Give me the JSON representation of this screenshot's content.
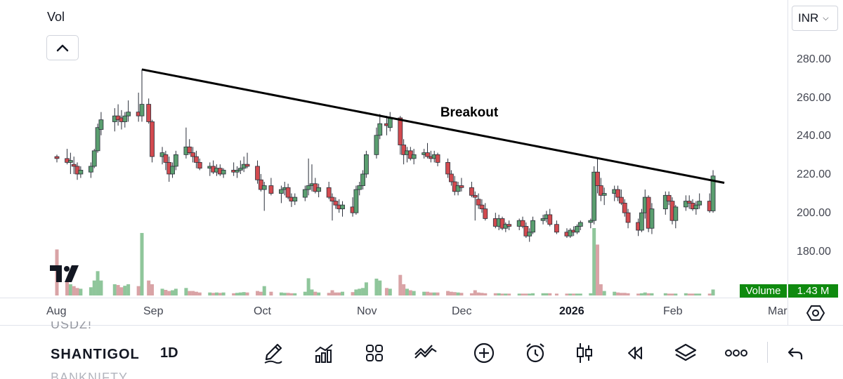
{
  "header": {
    "volume_indicator_label": "Vol"
  },
  "currency": {
    "value": "INR"
  },
  "price_axis": {
    "ticks": [
      "280.00",
      "260.00",
      "240.00",
      "220.00",
      "200.00",
      "180.00"
    ]
  },
  "time_axis": {
    "ticks": [
      "Aug",
      "Sep",
      "Oct",
      "Nov",
      "Dec",
      "2026",
      "Feb",
      "Mar"
    ]
  },
  "volume_badge": {
    "label": "Volume",
    "value": "1.43 M"
  },
  "annotation": {
    "text": "Breakout"
  },
  "symbols": {
    "previous": "USDZ!",
    "current": "SHANTIGOL",
    "next": "BANKNIFTY"
  },
  "interval": "1D",
  "toolbar": {
    "icons": [
      "drawing-pen-icon",
      "indicators-icon",
      "layouts-grid-icon",
      "compare-icon",
      "add-icon",
      "alert-clock-icon",
      "candle-type-icon",
      "replay-icon",
      "layers-icon",
      "more-icon",
      "undo-icon"
    ]
  },
  "colors": {
    "up": "#5a9e6f",
    "down": "#d24a4f",
    "up_vol": "#8fc69b",
    "down_vol": "#d9a3a6",
    "trendline": "#000000",
    "badge": "#0f8a0f"
  },
  "chart_data": {
    "type": "candlestick",
    "ylim": [
      166,
      291
    ],
    "x_range": [
      "2025-08-01",
      "2026-03-01"
    ],
    "grid": false,
    "trendline": {
      "from": [
        "2025-08-26",
        274
      ],
      "to": [
        "2026-02-10",
        216
      ]
    },
    "candles": [
      [
        "2025-08-01",
        229,
        230,
        226,
        228,
        123
      ],
      [
        "2025-08-04",
        228,
        233,
        225,
        226,
        40
      ],
      [
        "2025-08-05",
        226,
        231,
        220,
        227,
        30
      ],
      [
        "2025-08-06",
        225,
        229,
        220,
        224,
        25
      ],
      [
        "2025-08-07",
        224,
        226,
        217,
        220,
        20
      ],
      [
        "2025-08-08",
        220,
        224,
        218,
        222,
        18
      ],
      [
        "2025-08-11",
        221,
        226,
        218,
        224,
        22
      ],
      [
        "2025-08-12",
        224,
        233,
        223,
        232,
        40
      ],
      [
        "2025-08-13",
        232,
        246,
        231,
        244,
        65
      ],
      [
        "2025-08-14",
        243,
        252,
        240,
        248,
        40
      ],
      [
        "2025-08-18",
        247,
        254,
        242,
        250,
        30
      ],
      [
        "2025-08-19",
        250,
        256,
        245,
        248,
        28
      ],
      [
        "2025-08-20",
        249,
        253,
        243,
        247,
        22
      ],
      [
        "2025-08-21",
        247,
        252,
        244,
        250,
        26
      ],
      [
        "2025-08-22",
        250,
        258,
        247,
        252,
        30
      ],
      [
        "2025-08-25",
        252,
        262,
        247,
        250,
        25
      ],
      [
        "2025-08-26",
        250,
        274,
        247,
        256,
        167
      ],
      [
        "2025-08-28",
        256,
        259,
        246,
        247,
        40
      ],
      [
        "2025-08-29",
        247,
        248,
        226,
        229,
        30
      ],
      [
        "2025-09-01",
        229,
        234,
        225,
        231,
        18
      ],
      [
        "2025-09-02",
        230,
        232,
        222,
        226,
        15
      ],
      [
        "2025-09-03",
        226,
        229,
        216,
        220,
        12
      ],
      [
        "2025-09-04",
        220,
        226,
        218,
        224,
        14
      ],
      [
        "2025-09-05",
        224,
        232,
        222,
        230,
        18
      ],
      [
        "2025-09-08",
        230,
        244,
        228,
        234,
        20
      ],
      [
        "2025-09-09",
        234,
        238,
        230,
        231,
        12
      ],
      [
        "2025-09-10",
        231,
        234,
        226,
        229,
        12
      ],
      [
        "2025-09-11",
        229,
        232,
        223,
        226,
        10
      ],
      [
        "2025-09-12",
        226,
        228,
        222,
        223,
        8
      ],
      [
        "2025-09-15",
        223,
        226,
        219,
        224,
        8
      ],
      [
        "2025-09-16",
        224,
        227,
        220,
        221,
        7
      ],
      [
        "2025-09-17",
        221,
        225,
        219,
        223,
        8
      ],
      [
        "2025-09-18",
        223,
        225,
        219,
        220,
        7
      ],
      [
        "2025-09-19",
        220,
        223,
        218,
        222,
        8
      ],
      [
        "2025-09-22",
        222,
        226,
        219,
        221,
        6
      ],
      [
        "2025-09-23",
        221,
        224,
        218,
        222,
        7
      ],
      [
        "2025-09-24",
        222,
        227,
        220,
        223,
        8
      ],
      [
        "2025-09-25",
        223,
        229,
        221,
        225,
        9
      ],
      [
        "2025-09-26",
        225,
        231,
        223,
        224,
        8
      ],
      [
        "2025-09-29",
        224,
        227,
        215,
        217,
        12
      ],
      [
        "2025-09-30",
        217,
        220,
        211,
        212,
        10
      ],
      [
        "2025-10-01",
        212,
        216,
        201,
        214,
        25
      ],
      [
        "2025-10-03",
        214,
        218,
        209,
        210,
        10
      ],
      [
        "2025-10-06",
        210,
        214,
        205,
        212,
        8
      ],
      [
        "2025-10-07",
        212,
        216,
        209,
        213,
        7
      ],
      [
        "2025-10-08",
        213,
        215,
        207,
        208,
        7
      ],
      [
        "2025-10-09",
        208,
        210,
        203,
        206,
        6
      ],
      [
        "2025-10-10",
        206,
        210,
        204,
        208,
        6
      ],
      [
        "2025-10-13",
        208,
        214,
        206,
        212,
        10
      ],
      [
        "2025-10-14",
        212,
        228,
        209,
        214,
        46
      ],
      [
        "2025-10-15",
        214,
        225,
        211,
        215,
        16
      ],
      [
        "2025-10-16",
        215,
        218,
        210,
        211,
        10
      ],
      [
        "2025-10-17",
        211,
        215,
        208,
        213,
        8
      ],
      [
        "2025-10-20",
        213,
        216,
        207,
        208,
        7
      ],
      [
        "2025-10-21",
        208,
        210,
        196,
        206,
        14
      ],
      [
        "2025-10-22",
        206,
        208,
        202,
        204,
        8
      ],
      [
        "2025-10-23",
        204,
        207,
        200,
        202,
        8
      ],
      [
        "2025-10-24",
        202,
        206,
        198,
        204,
        10
      ],
      [
        "2025-10-27",
        203,
        208,
        198,
        200,
        9
      ],
      [
        "2025-10-28",
        200,
        214,
        199,
        212,
        16
      ],
      [
        "2025-10-29",
        212,
        216,
        209,
        214,
        18
      ],
      [
        "2025-10-30",
        214,
        222,
        212,
        220,
        20
      ],
      [
        "2025-10-31",
        220,
        232,
        218,
        230,
        35
      ],
      [
        "2025-11-03",
        230,
        244,
        228,
        240,
        45
      ],
      [
        "2025-11-04",
        240,
        251,
        238,
        246,
        40
      ],
      [
        "2025-11-06",
        246,
        250,
        240,
        245,
        20
      ],
      [
        "2025-11-07",
        244,
        252,
        242,
        249,
        18
      ],
      [
        "2025-11-10",
        249,
        250,
        230,
        235,
        55
      ],
      [
        "2025-11-11",
        235,
        238,
        225,
        230,
        30
      ],
      [
        "2025-11-12",
        230,
        234,
        226,
        232,
        18
      ],
      [
        "2025-11-13",
        232,
        234,
        227,
        228,
        14
      ],
      [
        "2025-11-14",
        228,
        233,
        225,
        230,
        12
      ],
      [
        "2025-11-17",
        230,
        233,
        228,
        231,
        10
      ],
      [
        "2025-11-18",
        231,
        236,
        228,
        229,
        10
      ],
      [
        "2025-11-19",
        229,
        232,
        226,
        228,
        8
      ],
      [
        "2025-11-20",
        228,
        232,
        226,
        230,
        8
      ],
      [
        "2025-11-21",
        230,
        231,
        224,
        226,
        8
      ],
      [
        "2025-11-24",
        226,
        228,
        218,
        220,
        12
      ],
      [
        "2025-11-25",
        220,
        222,
        214,
        216,
        10
      ],
      [
        "2025-11-26",
        216,
        219,
        209,
        211,
        9
      ],
      [
        "2025-11-27",
        211,
        216,
        209,
        214,
        8
      ],
      [
        "2025-11-28",
        214,
        218,
        211,
        213,
        7
      ],
      [
        "2025-12-01",
        213,
        216,
        208,
        209,
        6
      ],
      [
        "2025-12-02",
        209,
        211,
        196,
        208,
        14
      ],
      [
        "2025-12-03",
        207,
        210,
        202,
        204,
        8
      ],
      [
        "2025-12-04",
        204,
        207,
        200,
        202,
        7
      ],
      [
        "2025-12-05",
        202,
        205,
        196,
        197,
        6
      ],
      [
        "2025-12-08",
        197,
        200,
        192,
        193,
        6
      ],
      [
        "2025-12-09",
        193,
        199,
        191,
        197,
        6
      ],
      [
        "2025-12-10",
        197,
        198,
        191,
        192,
        5
      ],
      [
        "2025-12-11",
        192,
        195,
        190,
        194,
        5
      ],
      [
        "2025-12-12",
        194,
        196,
        191,
        193,
        5
      ],
      [
        "2025-12-15",
        193,
        197,
        191,
        196,
        5
      ],
      [
        "2025-12-16",
        196,
        198,
        192,
        193,
        5
      ],
      [
        "2025-12-17",
        193,
        195,
        187,
        188,
        5
      ],
      [
        "2025-12-18",
        188,
        192,
        185,
        190,
        5
      ],
      [
        "2025-12-19",
        190,
        198,
        189,
        196,
        6
      ],
      [
        "2025-12-22",
        196,
        199,
        194,
        197,
        6
      ],
      [
        "2025-12-23",
        197,
        201,
        195,
        199,
        6
      ],
      [
        "2025-12-24",
        199,
        202,
        193,
        194,
        6
      ],
      [
        "2025-12-26",
        194,
        196,
        189,
        190,
        5
      ],
      [
        "2025-12-29",
        190,
        192,
        187,
        188,
        5
      ],
      [
        "2025-12-30",
        188,
        192,
        187,
        191,
        5
      ],
      [
        "2025-12-31",
        191,
        193,
        188,
        190,
        5
      ],
      [
        "2026-01-01",
        190,
        194,
        189,
        193,
        5
      ],
      [
        "2026-01-02",
        193,
        196,
        191,
        195,
        5
      ],
      [
        "2026-01-05",
        195,
        197,
        192,
        196,
        6
      ],
      [
        "2026-01-06",
        196,
        224,
        194,
        221,
        180
      ],
      [
        "2026-01-07",
        221,
        228,
        210,
        214,
        136
      ],
      [
        "2026-01-08",
        214,
        218,
        206,
        209,
        30
      ],
      [
        "2026-01-09",
        209,
        213,
        204,
        210,
        12
      ],
      [
        "2026-01-12",
        210,
        214,
        206,
        212,
        10
      ],
      [
        "2026-01-13",
        212,
        214,
        206,
        208,
        8
      ],
      [
        "2026-01-14",
        208,
        212,
        204,
        205,
        7
      ],
      [
        "2026-01-15",
        205,
        207,
        198,
        200,
        7
      ],
      [
        "2026-01-16",
        200,
        202,
        192,
        195,
        6
      ],
      [
        "2026-01-19",
        195,
        197,
        188,
        191,
        5
      ],
      [
        "2026-01-20",
        191,
        202,
        190,
        200,
        6
      ],
      [
        "2026-01-21",
        200,
        212,
        197,
        208,
        8
      ],
      [
        "2026-01-22",
        208,
        209,
        190,
        192,
        6
      ],
      [
        "2026-01-23",
        192,
        205,
        189,
        202,
        6
      ],
      [
        "2026-01-27",
        202,
        211,
        199,
        209,
        6
      ],
      [
        "2026-01-28",
        209,
        211,
        204,
        206,
        5
      ],
      [
        "2026-01-29",
        206,
        208,
        194,
        196,
        5
      ],
      [
        "2026-01-30",
        196,
        204,
        192,
        203,
        5
      ],
      [
        "2026-02-02",
        203,
        209,
        201,
        206,
        6
      ],
      [
        "2026-02-03",
        206,
        209,
        202,
        205,
        5
      ],
      [
        "2026-02-04",
        205,
        207,
        201,
        202,
        5
      ],
      [
        "2026-02-05",
        202,
        206,
        199,
        204,
        5
      ],
      [
        "2026-02-06",
        204,
        210,
        202,
        206,
        5
      ],
      [
        "2026-02-09",
        206,
        210,
        200,
        201,
        5
      ],
      [
        "2026-02-10",
        201,
        222,
        200,
        219,
        16
      ]
    ]
  }
}
